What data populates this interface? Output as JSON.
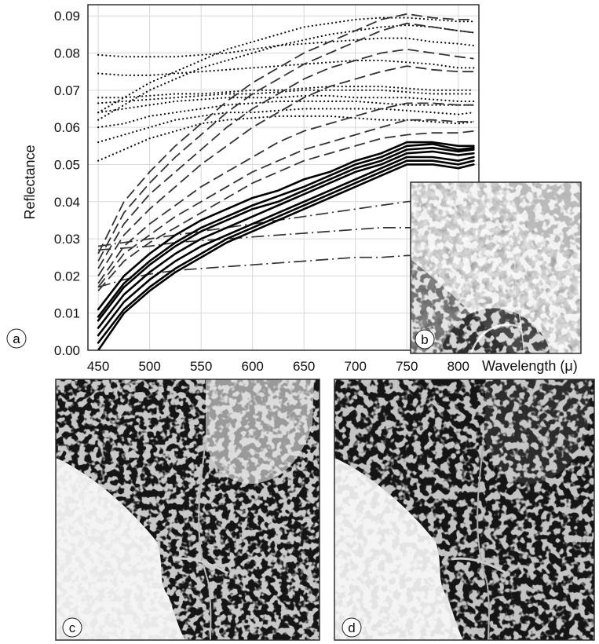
{
  "figure": {
    "panels": [
      {
        "letter": "a"
      },
      {
        "letter": "b",
        "content": "satellite-image"
      },
      {
        "letter": "c",
        "content": "classified-map"
      },
      {
        "letter": "d",
        "content": "classified-map"
      }
    ]
  },
  "chart_data": {
    "type": "line",
    "title": "",
    "xlabel": "Wavelength (μ)",
    "ylabel": "Reflectance",
    "xlim": [
      440,
      820
    ],
    "ylim": [
      0,
      0.093
    ],
    "x_ticks": [
      "450",
      "500",
      "550",
      "600",
      "650",
      "700",
      "750",
      "800"
    ],
    "y_ticks": [
      "0.00",
      "0.01",
      "0.02",
      "0.03",
      "0.04",
      "0.05",
      "0.06",
      "0.07",
      "0.08",
      "0.09"
    ],
    "grid": true,
    "x": [
      450,
      475,
      500,
      525,
      550,
      575,
      600,
      625,
      650,
      675,
      700,
      725,
      750,
      775,
      800,
      815
    ],
    "series": [
      {
        "style": "dotted",
        "values": [
          0.051,
          0.054,
          0.057,
          0.059,
          0.061,
          0.062,
          0.0625,
          0.063,
          0.063,
          0.063,
          0.0625,
          0.062,
          0.062,
          0.0615,
          0.061,
          0.0615
        ]
      },
      {
        "style": "dotted",
        "values": [
          0.056,
          0.058,
          0.06,
          0.062,
          0.063,
          0.064,
          0.064,
          0.0645,
          0.065,
          0.065,
          0.065,
          0.065,
          0.0645,
          0.064,
          0.0635,
          0.064
        ]
      },
      {
        "style": "dotted",
        "values": [
          0.06,
          0.061,
          0.063,
          0.064,
          0.065,
          0.066,
          0.0665,
          0.067,
          0.067,
          0.067,
          0.067,
          0.0665,
          0.066,
          0.066,
          0.066,
          0.066
        ]
      },
      {
        "style": "dotted",
        "values": [
          0.064,
          0.065,
          0.066,
          0.067,
          0.0675,
          0.068,
          0.068,
          0.068,
          0.0685,
          0.0685,
          0.068,
          0.068,
          0.068,
          0.0675,
          0.067,
          0.067
        ]
      },
      {
        "style": "dotted",
        "values": [
          0.0665,
          0.067,
          0.0675,
          0.068,
          0.0685,
          0.069,
          0.069,
          0.0695,
          0.07,
          0.07,
          0.07,
          0.07,
          0.0695,
          0.069,
          0.069,
          0.069
        ]
      },
      {
        "style": "dotted",
        "values": [
          0.068,
          0.068,
          0.0685,
          0.069,
          0.069,
          0.0695,
          0.07,
          0.07,
          0.0705,
          0.071,
          0.071,
          0.071,
          0.0705,
          0.07,
          0.07,
          0.07
        ]
      },
      {
        "style": "dotted",
        "values": [
          0.0745,
          0.074,
          0.074,
          0.0745,
          0.075,
          0.0755,
          0.076,
          0.0765,
          0.077,
          0.0775,
          0.078,
          0.078,
          0.0775,
          0.077,
          0.076,
          0.076
        ]
      },
      {
        "style": "dotted",
        "values": [
          0.0795,
          0.079,
          0.079,
          0.079,
          0.0795,
          0.08,
          0.081,
          0.082,
          0.0825,
          0.083,
          0.0835,
          0.084,
          0.084,
          0.083,
          0.0825,
          0.082
        ]
      },
      {
        "style": "dotted",
        "values": [
          0.062,
          0.066,
          0.07,
          0.073,
          0.076,
          0.078,
          0.08,
          0.082,
          0.0835,
          0.085,
          0.086,
          0.087,
          0.0875,
          0.087,
          0.086,
          0.0855
        ]
      },
      {
        "style": "dotted",
        "values": [
          0.064,
          0.068,
          0.072,
          0.075,
          0.078,
          0.081,
          0.083,
          0.085,
          0.087,
          0.088,
          0.089,
          0.0895,
          0.0895,
          0.089,
          0.0885,
          0.0885
        ]
      },
      {
        "style": "dashed",
        "values": [
          0.026,
          0.04,
          0.048,
          0.055,
          0.061,
          0.067,
          0.072,
          0.076,
          0.08,
          0.083,
          0.086,
          0.089,
          0.0905,
          0.0895,
          0.089,
          0.089
        ]
      },
      {
        "style": "dashed",
        "values": [
          0.024,
          0.037,
          0.045,
          0.052,
          0.058,
          0.064,
          0.069,
          0.073,
          0.077,
          0.08,
          0.083,
          0.086,
          0.088,
          0.087,
          0.086,
          0.0855
        ]
      },
      {
        "style": "dashed",
        "values": [
          0.022,
          0.034,
          0.042,
          0.048,
          0.054,
          0.06,
          0.065,
          0.069,
          0.073,
          0.076,
          0.078,
          0.08,
          0.081,
          0.08,
          0.079,
          0.0785
        ]
      },
      {
        "style": "dashed",
        "values": [
          0.02,
          0.031,
          0.038,
          0.044,
          0.05,
          0.055,
          0.06,
          0.064,
          0.068,
          0.071,
          0.073,
          0.075,
          0.0765,
          0.0755,
          0.075,
          0.075
        ]
      },
      {
        "style": "dashed",
        "values": [
          0.018,
          0.028,
          0.034,
          0.039,
          0.044,
          0.048,
          0.052,
          0.056,
          0.059,
          0.061,
          0.063,
          0.065,
          0.0665,
          0.0665,
          0.066,
          0.066
        ]
      },
      {
        "style": "dashed",
        "values": [
          0.017,
          0.026,
          0.031,
          0.036,
          0.04,
          0.044,
          0.048,
          0.051,
          0.054,
          0.056,
          0.058,
          0.06,
          0.062,
          0.062,
          0.0615,
          0.0615
        ]
      },
      {
        "style": "dashed",
        "values": [
          0.016,
          0.024,
          0.029,
          0.033,
          0.037,
          0.041,
          0.045,
          0.048,
          0.051,
          0.053,
          0.055,
          0.057,
          0.058,
          0.0585,
          0.0585,
          0.059
        ]
      },
      {
        "style": "dash-dot",
        "values": [
          0.028,
          0.029,
          0.03,
          0.031,
          0.032,
          0.033,
          0.034,
          0.035,
          0.036,
          0.037,
          0.038,
          0.039,
          0.04,
          0.0405,
          0.041,
          0.0415
        ]
      },
      {
        "style": "dash-dot",
        "values": [
          0.027,
          0.0275,
          0.028,
          0.029,
          0.0295,
          0.03,
          0.0305,
          0.031,
          0.0315,
          0.032,
          0.0325,
          0.033,
          0.033,
          0.033,
          0.0335,
          0.0335
        ]
      },
      {
        "style": "dash-dot",
        "values": [
          0.017,
          0.019,
          0.0205,
          0.0215,
          0.022,
          0.0225,
          0.023,
          0.0235,
          0.024,
          0.0245,
          0.025,
          0.025,
          0.0255,
          0.0255,
          0.0255,
          0.0255
        ]
      },
      {
        "style": "solid",
        "values": [
          0.011,
          0.02,
          0.026,
          0.031,
          0.035,
          0.038,
          0.041,
          0.043,
          0.046,
          0.048,
          0.051,
          0.053,
          0.056,
          0.056,
          0.055,
          0.055
        ]
      },
      {
        "style": "solid",
        "values": [
          0.009,
          0.018,
          0.024,
          0.029,
          0.033,
          0.036,
          0.039,
          0.0415,
          0.044,
          0.047,
          0.05,
          0.052,
          0.055,
          0.0555,
          0.054,
          0.0545
        ]
      },
      {
        "style": "solid",
        "values": [
          0.008,
          0.017,
          0.023,
          0.028,
          0.032,
          0.035,
          0.038,
          0.04,
          0.043,
          0.046,
          0.049,
          0.051,
          0.054,
          0.0545,
          0.0535,
          0.054
        ]
      },
      {
        "style": "solid",
        "values": [
          0.006,
          0.015,
          0.021,
          0.026,
          0.03,
          0.033,
          0.036,
          0.039,
          0.042,
          0.045,
          0.048,
          0.05,
          0.053,
          0.0535,
          0.0525,
          0.053
        ]
      },
      {
        "style": "solid",
        "values": [
          0.004,
          0.013,
          0.019,
          0.024,
          0.028,
          0.031,
          0.034,
          0.037,
          0.04,
          0.043,
          0.046,
          0.049,
          0.052,
          0.052,
          0.051,
          0.052
        ]
      },
      {
        "style": "solid",
        "values": [
          0.002,
          0.011,
          0.017,
          0.022,
          0.026,
          0.03,
          0.033,
          0.036,
          0.039,
          0.042,
          0.045,
          0.048,
          0.051,
          0.051,
          0.05,
          0.051
        ]
      },
      {
        "style": "solid",
        "values": [
          0.0,
          0.01,
          0.016,
          0.021,
          0.025,
          0.029,
          0.032,
          0.035,
          0.038,
          0.041,
          0.044,
          0.047,
          0.05,
          0.05,
          0.049,
          0.05
        ]
      }
    ]
  }
}
